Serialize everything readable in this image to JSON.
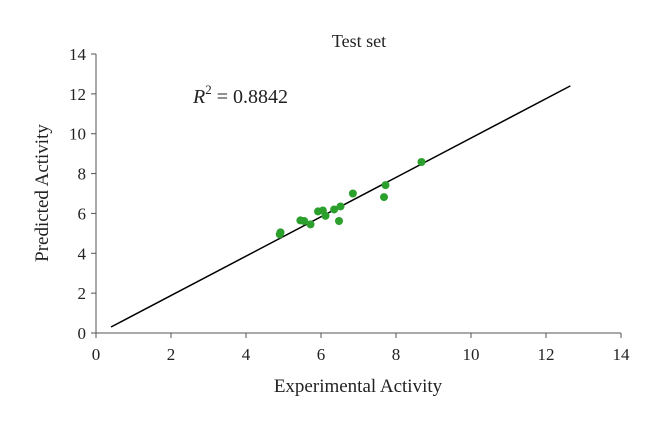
{
  "chart_data": {
    "type": "scatter",
    "title": "Test set",
    "xlabel": "Experimental Activity",
    "ylabel": "Predicted Activity",
    "xlim": [
      0,
      14
    ],
    "ylim": [
      0,
      14
    ],
    "xticks": [
      "0",
      "2",
      "4",
      "6",
      "8",
      "10",
      "12",
      "14"
    ],
    "yticks": [
      "0",
      "2",
      "4",
      "6",
      "8",
      "10",
      "12",
      "14"
    ],
    "grid": false,
    "annotation": {
      "r_symbol": "R",
      "exponent": "2",
      "value_text": " = 0.8842"
    },
    "points_color": "#2ca02c",
    "fit_line": {
      "x": [
        0.4,
        12.65
      ],
      "y": [
        0.3,
        12.4
      ],
      "color": "#000000"
    },
    "points": [
      {
        "x": 4.9,
        "y": 4.95
      },
      {
        "x": 4.92,
        "y": 5.05
      },
      {
        "x": 5.45,
        "y": 5.65
      },
      {
        "x": 5.55,
        "y": 5.62
      },
      {
        "x": 5.72,
        "y": 5.45
      },
      {
        "x": 5.92,
        "y": 6.1
      },
      {
        "x": 6.05,
        "y": 6.15
      },
      {
        "x": 6.12,
        "y": 5.88
      },
      {
        "x": 6.35,
        "y": 6.2
      },
      {
        "x": 6.48,
        "y": 5.62
      },
      {
        "x": 6.52,
        "y": 6.35
      },
      {
        "x": 6.85,
        "y": 7.0
      },
      {
        "x": 7.68,
        "y": 6.82
      },
      {
        "x": 7.72,
        "y": 7.42
      },
      {
        "x": 8.68,
        "y": 8.58
      }
    ]
  }
}
